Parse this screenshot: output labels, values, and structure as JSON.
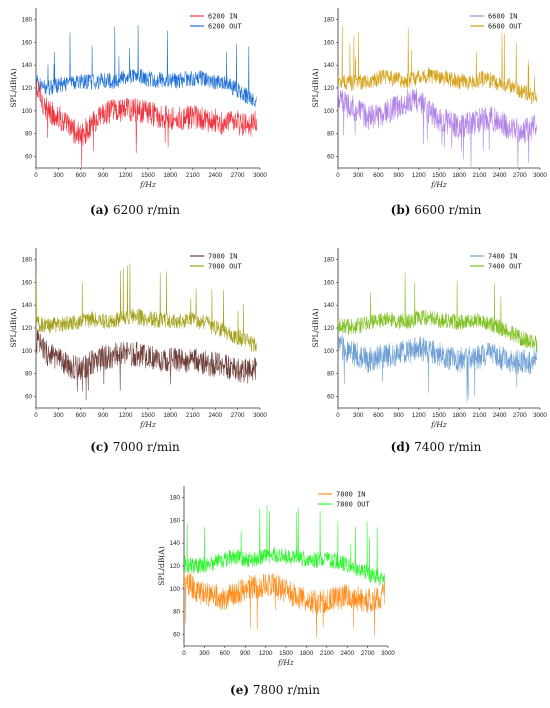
{
  "chart_data": [
    {
      "id": "a",
      "type": "line",
      "caption_letter": "(a)",
      "caption_text": "6200 r/min",
      "xlabel": "f/Hz",
      "ylabel": "SPL/dB(A)",
      "xlim": [
        0,
        3000
      ],
      "ylim": [
        50,
        190
      ],
      "xticks": [
        0,
        300,
        600,
        900,
        1200,
        1500,
        1800,
        2100,
        2400,
        2700,
        3000
      ],
      "yticks": [
        60,
        80,
        100,
        120,
        140,
        160,
        180
      ],
      "legend": "top-right",
      "series": [
        {
          "name": "6200 IN",
          "color": "#f0323c",
          "x": [
            0,
            150,
            300,
            450,
            600,
            750,
            900,
            1050,
            1200,
            1350,
            1500,
            1650,
            1800,
            1950,
            2100,
            2250,
            2400,
            2550,
            2700,
            2850,
            2950
          ],
          "values": [
            120,
            100,
            95,
            85,
            78,
            88,
            96,
            100,
            102,
            100,
            98,
            96,
            94,
            93,
            94,
            92,
            92,
            88,
            90,
            86,
            90
          ]
        },
        {
          "name": "6200 OUT",
          "color": "#1f6fd6",
          "x": [
            0,
            150,
            300,
            450,
            600,
            750,
            900,
            1050,
            1200,
            1350,
            1500,
            1650,
            1800,
            1950,
            2100,
            2250,
            2400,
            2550,
            2700,
            2850,
            2950
          ],
          "values": [
            125,
            120,
            122,
            124,
            126,
            125,
            127,
            126,
            130,
            131,
            128,
            127,
            126,
            127,
            129,
            128,
            125,
            124,
            118,
            112,
            110
          ]
        }
      ]
    },
    {
      "id": "b",
      "type": "line",
      "caption_letter": "(b)",
      "caption_text": "6600 r/min",
      "xlabel": "f/Hz",
      "ylabel": "SPL/dB(A)",
      "xlim": [
        0,
        3000
      ],
      "ylim": [
        50,
        190
      ],
      "xticks": [
        0,
        300,
        600,
        900,
        1200,
        1500,
        1800,
        2100,
        2400,
        2700,
        3000
      ],
      "yticks": [
        60,
        80,
        100,
        120,
        140,
        160,
        180
      ],
      "legend": "top-right",
      "series": [
        {
          "name": "6600 IN",
          "color": "#b081e6",
          "x": [
            0,
            150,
            300,
            450,
            600,
            750,
            900,
            1050,
            1200,
            1350,
            1500,
            1650,
            1800,
            1950,
            2100,
            2250,
            2400,
            2550,
            2700,
            2850,
            2950
          ],
          "values": [
            110,
            105,
            100,
            94,
            96,
            100,
            104,
            110,
            108,
            100,
            92,
            90,
            86,
            88,
            92,
            94,
            90,
            85,
            82,
            84,
            88
          ]
        },
        {
          "name": "6600 OUT",
          "color": "#d4a017",
          "x": [
            0,
            150,
            300,
            450,
            600,
            750,
            900,
            1050,
            1200,
            1350,
            1500,
            1650,
            1800,
            1950,
            2100,
            2250,
            2400,
            2550,
            2700,
            2850,
            2950
          ],
          "values": [
            128,
            124,
            125,
            126,
            128,
            130,
            127,
            126,
            130,
            131,
            129,
            128,
            126,
            125,
            128,
            127,
            124,
            122,
            118,
            114,
            110
          ]
        }
      ]
    },
    {
      "id": "c",
      "type": "line",
      "caption_letter": "(c)",
      "caption_text": "7000 r/min",
      "xlabel": "f/Hz",
      "ylabel": "SPL/dB(A)",
      "xlim": [
        0,
        3000
      ],
      "ylim": [
        50,
        190
      ],
      "xticks": [
        0,
        300,
        600,
        900,
        1200,
        1500,
        1800,
        2100,
        2400,
        2700,
        3000
      ],
      "yticks": [
        60,
        80,
        100,
        120,
        140,
        160,
        180
      ],
      "legend": "top-right",
      "series": [
        {
          "name": "7000 IN",
          "color": "#6b3a34",
          "x": [
            0,
            150,
            300,
            450,
            600,
            750,
            900,
            1050,
            1200,
            1350,
            1500,
            1650,
            1800,
            1950,
            2100,
            2250,
            2400,
            2550,
            2700,
            2850,
            2950
          ],
          "values": [
            110,
            98,
            92,
            86,
            85,
            90,
            94,
            96,
            98,
            97,
            95,
            93,
            92,
            91,
            92,
            90,
            88,
            86,
            84,
            82,
            86
          ]
        },
        {
          "name": "7000 OUT",
          "color": "#a3a11a",
          "x": [
            0,
            150,
            300,
            450,
            600,
            750,
            900,
            1050,
            1200,
            1350,
            1500,
            1650,
            1800,
            1950,
            2100,
            2250,
            2400,
            2550,
            2700,
            2850,
            2950
          ],
          "values": [
            124,
            122,
            123,
            125,
            126,
            128,
            126,
            127,
            130,
            130,
            128,
            127,
            126,
            126,
            127,
            125,
            120,
            116,
            112,
            108,
            104
          ]
        }
      ]
    },
    {
      "id": "d",
      "type": "line",
      "caption_letter": "(d)",
      "caption_text": "7400 r/min",
      "xlabel": "f/Hz",
      "ylabel": "SPL/dB(A)",
      "xlim": [
        0,
        3000
      ],
      "ylim": [
        50,
        190
      ],
      "xticks": [
        0,
        300,
        600,
        900,
        1200,
        1500,
        1800,
        2100,
        2400,
        2700,
        3000
      ],
      "yticks": [
        60,
        80,
        100,
        120,
        140,
        160,
        180
      ],
      "legend": "top-right",
      "series": [
        {
          "name": "7400 IN",
          "color": "#6e9fd4",
          "x": [
            0,
            150,
            300,
            450,
            600,
            750,
            900,
            1050,
            1200,
            1350,
            1500,
            1650,
            1800,
            1950,
            2100,
            2250,
            2400,
            2550,
            2700,
            2850,
            2950
          ],
          "values": [
            106,
            100,
            96,
            92,
            94,
            96,
            98,
            100,
            102,
            100,
            97,
            94,
            92,
            93,
            95,
            96,
            94,
            92,
            90,
            90,
            94
          ]
        },
        {
          "name": "7400 OUT",
          "color": "#7fbf1f",
          "x": [
            0,
            150,
            300,
            450,
            600,
            750,
            900,
            1050,
            1200,
            1350,
            1500,
            1650,
            1800,
            1950,
            2100,
            2250,
            2400,
            2550,
            2700,
            2850,
            2950
          ],
          "values": [
            124,
            121,
            122,
            124,
            126,
            127,
            126,
            126,
            129,
            129,
            127,
            126,
            125,
            126,
            127,
            124,
            120,
            116,
            112,
            108,
            106
          ]
        }
      ]
    },
    {
      "id": "e",
      "type": "line",
      "caption_letter": "(e)",
      "caption_text": "7800 r/min",
      "xlabel": "f/Hz",
      "ylabel": "SPL/dB(A)",
      "xlim": [
        0,
        3000
      ],
      "ylim": [
        50,
        190
      ],
      "xticks": [
        0,
        300,
        600,
        900,
        1200,
        1500,
        1800,
        2100,
        2400,
        2700,
        3000
      ],
      "yticks": [
        60,
        80,
        100,
        120,
        140,
        160,
        180
      ],
      "legend": "top-right",
      "series": [
        {
          "name": "7800 IN",
          "color": "#ff8c1a",
          "x": [
            0,
            150,
            300,
            450,
            600,
            750,
            900,
            1050,
            1200,
            1350,
            1500,
            1650,
            1800,
            1950,
            2100,
            2250,
            2400,
            2550,
            2700,
            2850,
            2950
          ],
          "values": [
            108,
            100,
            96,
            94,
            92,
            96,
            100,
            102,
            104,
            102,
            98,
            94,
            90,
            88,
            90,
            92,
            94,
            92,
            90,
            92,
            96
          ]
        },
        {
          "name": "7800 OUT",
          "color": "#2af52a",
          "x": [
            0,
            150,
            300,
            450,
            600,
            750,
            900,
            1050,
            1200,
            1350,
            1500,
            1650,
            1800,
            1950,
            2100,
            2250,
            2400,
            2550,
            2700,
            2850,
            2950
          ],
          "values": [
            122,
            120,
            121,
            123,
            126,
            128,
            126,
            126,
            129,
            130,
            128,
            127,
            126,
            125,
            126,
            124,
            121,
            118,
            114,
            110,
            108
          ]
        }
      ]
    }
  ]
}
